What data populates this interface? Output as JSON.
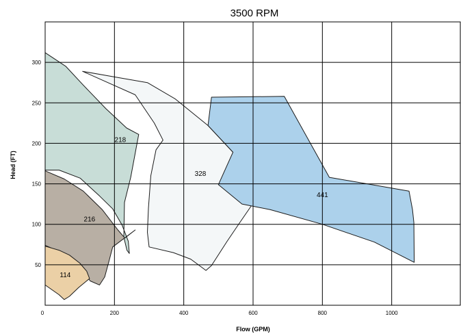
{
  "chart_data": {
    "type": "area",
    "title": "3500 RPM",
    "xlabel": "Flow (GPM)",
    "ylabel": "Head (FT)",
    "xlim": [
      0,
      1200
    ],
    "ylim": [
      0,
      350
    ],
    "grid": true,
    "x_ticks": [
      0,
      200,
      400,
      600,
      800,
      1000
    ],
    "y_ticks": [
      50,
      100,
      150,
      200,
      250,
      300
    ],
    "regions": [
      {
        "label": "328",
        "color": "#f4f7f8",
        "label_point": [
          448,
          163
        ],
        "outline": [
          [
            108,
            289
          ],
          [
            200,
            282
          ],
          [
            295,
            275
          ],
          [
            375,
            255
          ],
          [
            470,
            222
          ],
          [
            542,
            189
          ],
          [
            593,
            148
          ],
          [
            600,
            126
          ],
          [
            560,
            101
          ],
          [
            525,
            79
          ],
          [
            480,
            49
          ],
          [
            464,
            43
          ],
          [
            420,
            57
          ],
          [
            370,
            65
          ],
          [
            300,
            72
          ],
          [
            295,
            90
          ],
          [
            298,
            120
          ],
          [
            305,
            160
          ],
          [
            320,
            192
          ],
          [
            340,
            204
          ],
          [
            315,
            225
          ],
          [
            260,
            260
          ],
          [
            108,
            289
          ]
        ]
      },
      {
        "label": "441",
        "color": "#acd1eb",
        "label_point": [
          800,
          137
        ],
        "outline": [
          [
            480,
            257
          ],
          [
            690,
            258
          ],
          [
            820,
            158
          ],
          [
            1050,
            141
          ],
          [
            1060,
            118
          ],
          [
            1064,
            102
          ],
          [
            1065,
            53
          ],
          [
            950,
            78
          ],
          [
            800,
            100
          ],
          [
            650,
            118
          ],
          [
            568,
            125
          ],
          [
            500,
            149
          ],
          [
            542,
            189
          ],
          [
            470,
            222
          ],
          [
            480,
            257
          ]
        ]
      },
      {
        "label": "218",
        "color": "#c8ddd7",
        "label_point": [
          217,
          205
        ],
        "outline": [
          [
            0,
            312
          ],
          [
            60,
            295
          ],
          [
            110,
            272
          ],
          [
            175,
            243
          ],
          [
            235,
            219
          ],
          [
            270,
            211
          ],
          [
            247,
            158
          ],
          [
            229,
            127
          ],
          [
            227,
            84
          ],
          [
            236,
            68
          ],
          [
            243,
            64
          ],
          [
            240,
            79
          ],
          [
            222,
            99
          ],
          [
            195,
            119
          ],
          [
            157,
            135
          ],
          [
            101,
            157
          ],
          [
            40,
            167
          ],
          [
            0,
            167
          ],
          [
            0,
            312
          ]
        ]
      },
      {
        "label": "216",
        "color": "#b8afa4",
        "label_point": [
          128,
          107
        ],
        "outline": [
          [
            0,
            166
          ],
          [
            55,
            156
          ],
          [
            110,
            141
          ],
          [
            165,
            118
          ],
          [
            210,
            93
          ],
          [
            230,
            83
          ],
          [
            260,
            93
          ],
          [
            195,
            72
          ],
          [
            184,
            54
          ],
          [
            172,
            35
          ],
          [
            157,
            25
          ],
          [
            130,
            30
          ],
          [
            100,
            47
          ],
          [
            65,
            62
          ],
          [
            0,
            74
          ],
          [
            0,
            166
          ]
        ]
      },
      {
        "label": "114",
        "color": "#ebd0a6",
        "label_point": [
          58,
          38
        ],
        "outline": [
          [
            0,
            73
          ],
          [
            40,
            68
          ],
          [
            70,
            62
          ],
          [
            100,
            52
          ],
          [
            120,
            42
          ],
          [
            128,
            33
          ],
          [
            97,
            22
          ],
          [
            70,
            11
          ],
          [
            55,
            7
          ],
          [
            40,
            13
          ],
          [
            0,
            25
          ],
          [
            0,
            73
          ]
        ]
      }
    ]
  }
}
